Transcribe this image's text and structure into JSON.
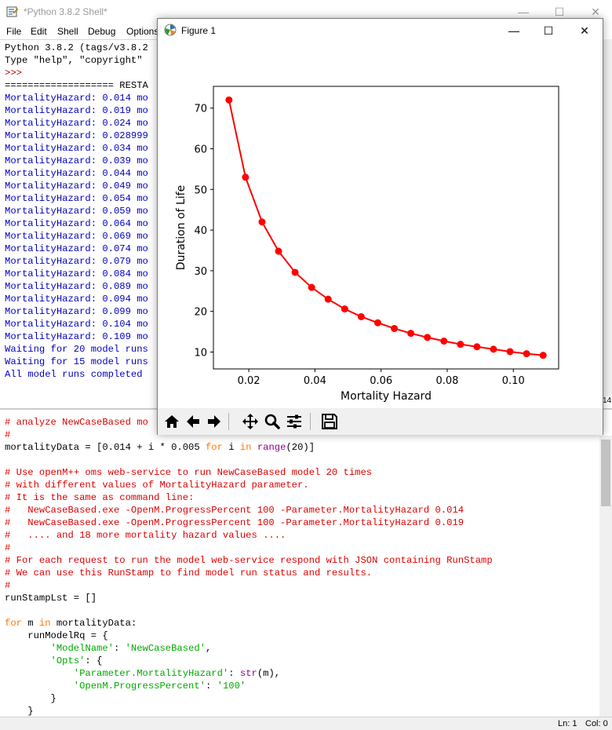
{
  "shell": {
    "title": "*Python 3.8.2 Shell*",
    "menu": [
      "File",
      "Edit",
      "Shell",
      "Debug",
      "Options"
    ],
    "lines": [
      {
        "text": "Python 3.8.2 (tags/v3.8.2",
        "color": "black"
      },
      {
        "text": "Type \"help\", \"copyright\"",
        "color": "black"
      },
      {
        "text": ">>>",
        "color": "red"
      },
      {
        "text": "=================== RESTA",
        "color": "black"
      },
      {
        "text": "MortalityHazard: 0.014 mo",
        "color": "blue"
      },
      {
        "text": "MortalityHazard: 0.019 mo",
        "color": "blue"
      },
      {
        "text": "MortalityHazard: 0.024 mo",
        "color": "blue"
      },
      {
        "text": "MortalityHazard: 0.028999",
        "color": "blue"
      },
      {
        "text": "MortalityHazard: 0.034 mo",
        "color": "blue"
      },
      {
        "text": "MortalityHazard: 0.039 mo",
        "color": "blue"
      },
      {
        "text": "MortalityHazard: 0.044 mo",
        "color": "blue"
      },
      {
        "text": "MortalityHazard: 0.049 mo",
        "color": "blue"
      },
      {
        "text": "MortalityHazard: 0.054 mo",
        "color": "blue"
      },
      {
        "text": "MortalityHazard: 0.059 mo",
        "color": "blue"
      },
      {
        "text": "MortalityHazard: 0.064 mo",
        "color": "blue"
      },
      {
        "text": "MortalityHazard: 0.069 mo",
        "color": "blue"
      },
      {
        "text": "MortalityHazard: 0.074 mo",
        "color": "blue"
      },
      {
        "text": "MortalityHazard: 0.079 mo",
        "color": "blue"
      },
      {
        "text": "MortalityHazard: 0.084 mo",
        "color": "blue"
      },
      {
        "text": "MortalityHazard: 0.089 mo",
        "color": "blue"
      },
      {
        "text": "MortalityHazard: 0.094 mo",
        "color": "blue"
      },
      {
        "text": "MortalityHazard: 0.099 mo",
        "color": "blue"
      },
      {
        "text": "MortalityHazard: 0.104 mo",
        "color": "blue"
      },
      {
        "text": "MortalityHazard: 0.109 mo",
        "color": "blue"
      },
      {
        "text": "Waiting for 20 model runs",
        "color": "blue"
      },
      {
        "text": "Waiting for 15 model runs",
        "color": "blue"
      },
      {
        "text": "All model runs completed",
        "color": "blue"
      }
    ],
    "right_edge_label": "14"
  },
  "editor": {
    "lines": [
      [
        {
          "t": "# analyze NewCaseBased mo",
          "c": "comment"
        }
      ],
      [
        {
          "t": "#",
          "c": "comment"
        }
      ],
      [
        {
          "t": "mortalityData = [0.014 + i * 0.005 ",
          "c": "normal"
        },
        {
          "t": "for",
          "c": "keyword"
        },
        {
          "t": " i ",
          "c": "normal"
        },
        {
          "t": "in",
          "c": "keyword"
        },
        {
          "t": " ",
          "c": "normal"
        },
        {
          "t": "range",
          "c": "builtin"
        },
        {
          "t": "(20)]",
          "c": "normal"
        }
      ],
      [
        {
          "t": "",
          "c": "normal"
        }
      ],
      [
        {
          "t": "# Use openM++ oms web-service to run NewCaseBased model 20 times",
          "c": "comment"
        }
      ],
      [
        {
          "t": "# with different values of MortalityHazard parameter.",
          "c": "comment"
        }
      ],
      [
        {
          "t": "# It is the same as command line:",
          "c": "comment"
        }
      ],
      [
        {
          "t": "#   NewCaseBased.exe -OpenM.ProgressPercent 100 -Parameter.MortalityHazard 0.014",
          "c": "comment"
        }
      ],
      [
        {
          "t": "#   NewCaseBased.exe -OpenM.ProgressPercent 100 -Parameter.MortalityHazard 0.019",
          "c": "comment"
        }
      ],
      [
        {
          "t": "#   .... and 18 more mortality hazard values ....",
          "c": "comment"
        }
      ],
      [
        {
          "t": "#",
          "c": "comment"
        }
      ],
      [
        {
          "t": "# For each request to run the model web-service respond with JSON containing RunStamp",
          "c": "comment"
        }
      ],
      [
        {
          "t": "# We can use this RunStamp to find model run status and results.",
          "c": "comment"
        }
      ],
      [
        {
          "t": "#",
          "c": "comment"
        }
      ],
      [
        {
          "t": "runStampLst = []",
          "c": "normal"
        }
      ],
      [
        {
          "t": "",
          "c": "normal"
        }
      ],
      [
        {
          "t": "for",
          "c": "keyword"
        },
        {
          "t": " m ",
          "c": "normal"
        },
        {
          "t": "in",
          "c": "keyword"
        },
        {
          "t": " mortalityData:",
          "c": "normal"
        }
      ],
      [
        {
          "t": "    runModelRq = {",
          "c": "normal"
        }
      ],
      [
        {
          "t": "        ",
          "c": "normal"
        },
        {
          "t": "'ModelName'",
          "c": "string"
        },
        {
          "t": ": ",
          "c": "normal"
        },
        {
          "t": "'NewCaseBased'",
          "c": "string"
        },
        {
          "t": ",",
          "c": "normal"
        }
      ],
      [
        {
          "t": "        ",
          "c": "normal"
        },
        {
          "t": "'Opts'",
          "c": "string"
        },
        {
          "t": ": {",
          "c": "normal"
        }
      ],
      [
        {
          "t": "            ",
          "c": "normal"
        },
        {
          "t": "'Parameter.MortalityHazard'",
          "c": "string"
        },
        {
          "t": ": ",
          "c": "normal"
        },
        {
          "t": "str",
          "c": "builtin"
        },
        {
          "t": "(m),",
          "c": "normal"
        }
      ],
      [
        {
          "t": "            ",
          "c": "normal"
        },
        {
          "t": "'OpenM.ProgressPercent'",
          "c": "string"
        },
        {
          "t": ": ",
          "c": "normal"
        },
        {
          "t": "'100'",
          "c": "string"
        }
      ],
      [
        {
          "t": "        }",
          "c": "normal"
        }
      ],
      [
        {
          "t": "    }",
          "c": "normal"
        }
      ]
    ],
    "colors": {
      "comment": "#dd0000",
      "keyword": "#ff7700",
      "builtin": "#900090",
      "string": "#00aa00",
      "normal": "#000000"
    }
  },
  "status": {
    "ln": "Ln: 1",
    "col": "Col: 0"
  },
  "figure": {
    "title": "Figure 1",
    "toolbar": [
      "home-icon",
      "back-arrow-icon",
      "forward-arrow-icon",
      "pan-icon",
      "zoom-icon",
      "configure-subplots-icon",
      "save-icon"
    ]
  },
  "chart_data": {
    "type": "line",
    "x": [
      0.014,
      0.019,
      0.024,
      0.029,
      0.034,
      0.039,
      0.044,
      0.049,
      0.054,
      0.059,
      0.064,
      0.069,
      0.074,
      0.079,
      0.084,
      0.089,
      0.094,
      0.099,
      0.104,
      0.109
    ],
    "series": [
      {
        "values": [
          72.0,
          53.0,
          42.0,
          34.8,
          29.6,
          25.9,
          23.0,
          20.6,
          18.7,
          17.2,
          15.8,
          14.6,
          13.6,
          12.7,
          11.9,
          11.3,
          10.7,
          10.1,
          9.6,
          9.2
        ],
        "color": "#ff0000",
        "marker": "circle"
      }
    ],
    "xlabel": "Mortality Hazard",
    "ylabel": "Duration of Life",
    "xlim": [
      0.0093,
      0.1137
    ],
    "ylim": [
      5.85,
      75.35
    ],
    "xticks": [
      0.02,
      0.04,
      0.06,
      0.08,
      0.1
    ],
    "xtick_labels": [
      "0.02",
      "0.04",
      "0.06",
      "0.08",
      "0.10"
    ],
    "yticks": [
      10,
      20,
      30,
      40,
      50,
      60,
      70
    ],
    "ytick_labels": [
      "10",
      "20",
      "30",
      "40",
      "50",
      "60",
      "70"
    ],
    "grid": false,
    "title": ""
  }
}
